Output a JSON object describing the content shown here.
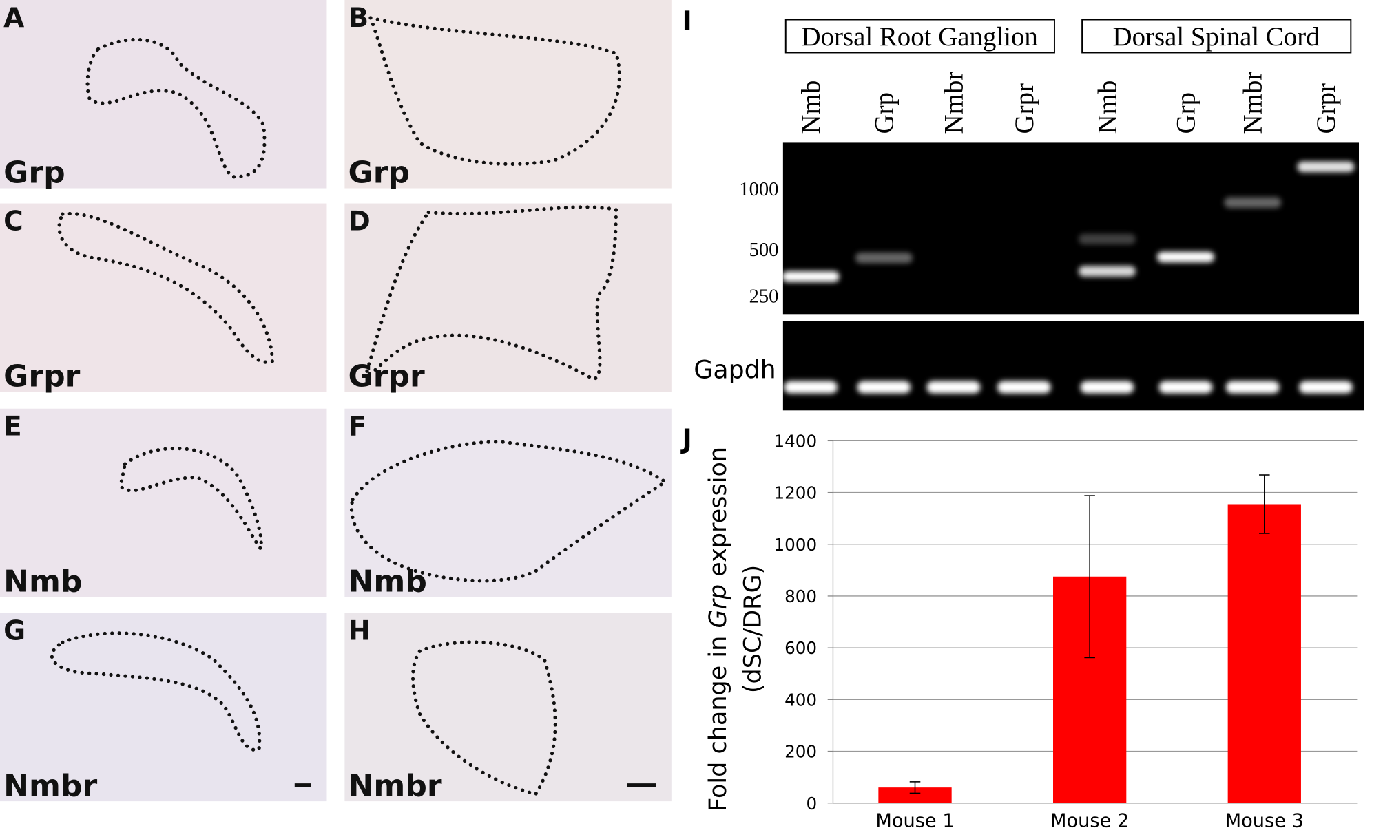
{
  "panels": [
    {
      "letter": "A",
      "gene": "Grp"
    },
    {
      "letter": "B",
      "gene": "Grp"
    },
    {
      "letter": "C",
      "gene": "Grpr"
    },
    {
      "letter": "D",
      "gene": "Grpr"
    },
    {
      "letter": "E",
      "gene": "Nmb"
    },
    {
      "letter": "F",
      "gene": "Nmb"
    },
    {
      "letter": "G",
      "gene": "Nmbr"
    },
    {
      "letter": "H",
      "gene": "Nmbr"
    }
  ],
  "gel": {
    "label": "I",
    "groups": [
      "Dorsal Root Ganglion",
      "Dorsal Spinal Cord"
    ],
    "lanes": [
      "Nmb",
      "Grp",
      "Nmbr",
      "Grpr",
      "Nmb",
      "Grp",
      "Nmbr",
      "Grpr"
    ],
    "ladder": [
      1000,
      500,
      250
    ],
    "control": "Gapdh"
  },
  "chart_data": {
    "type": "bar",
    "label": "J",
    "ylabel": {
      "before": "Fold change in ",
      "italic": "Grp",
      "after": " expression"
    },
    "ylabel_line2": "(dSC/DRG)",
    "categories": [
      "Mouse 1",
      "Mouse 2",
      "Mouse 3"
    ],
    "values": [
      60,
      875,
      1155
    ],
    "errors": [
      22,
      313,
      113
    ],
    "color": "#ff0000",
    "ylim": [
      0,
      1400
    ],
    "yticks": [
      0,
      200,
      400,
      600,
      800,
      1000,
      1200,
      1400
    ],
    "grid": true
  }
}
